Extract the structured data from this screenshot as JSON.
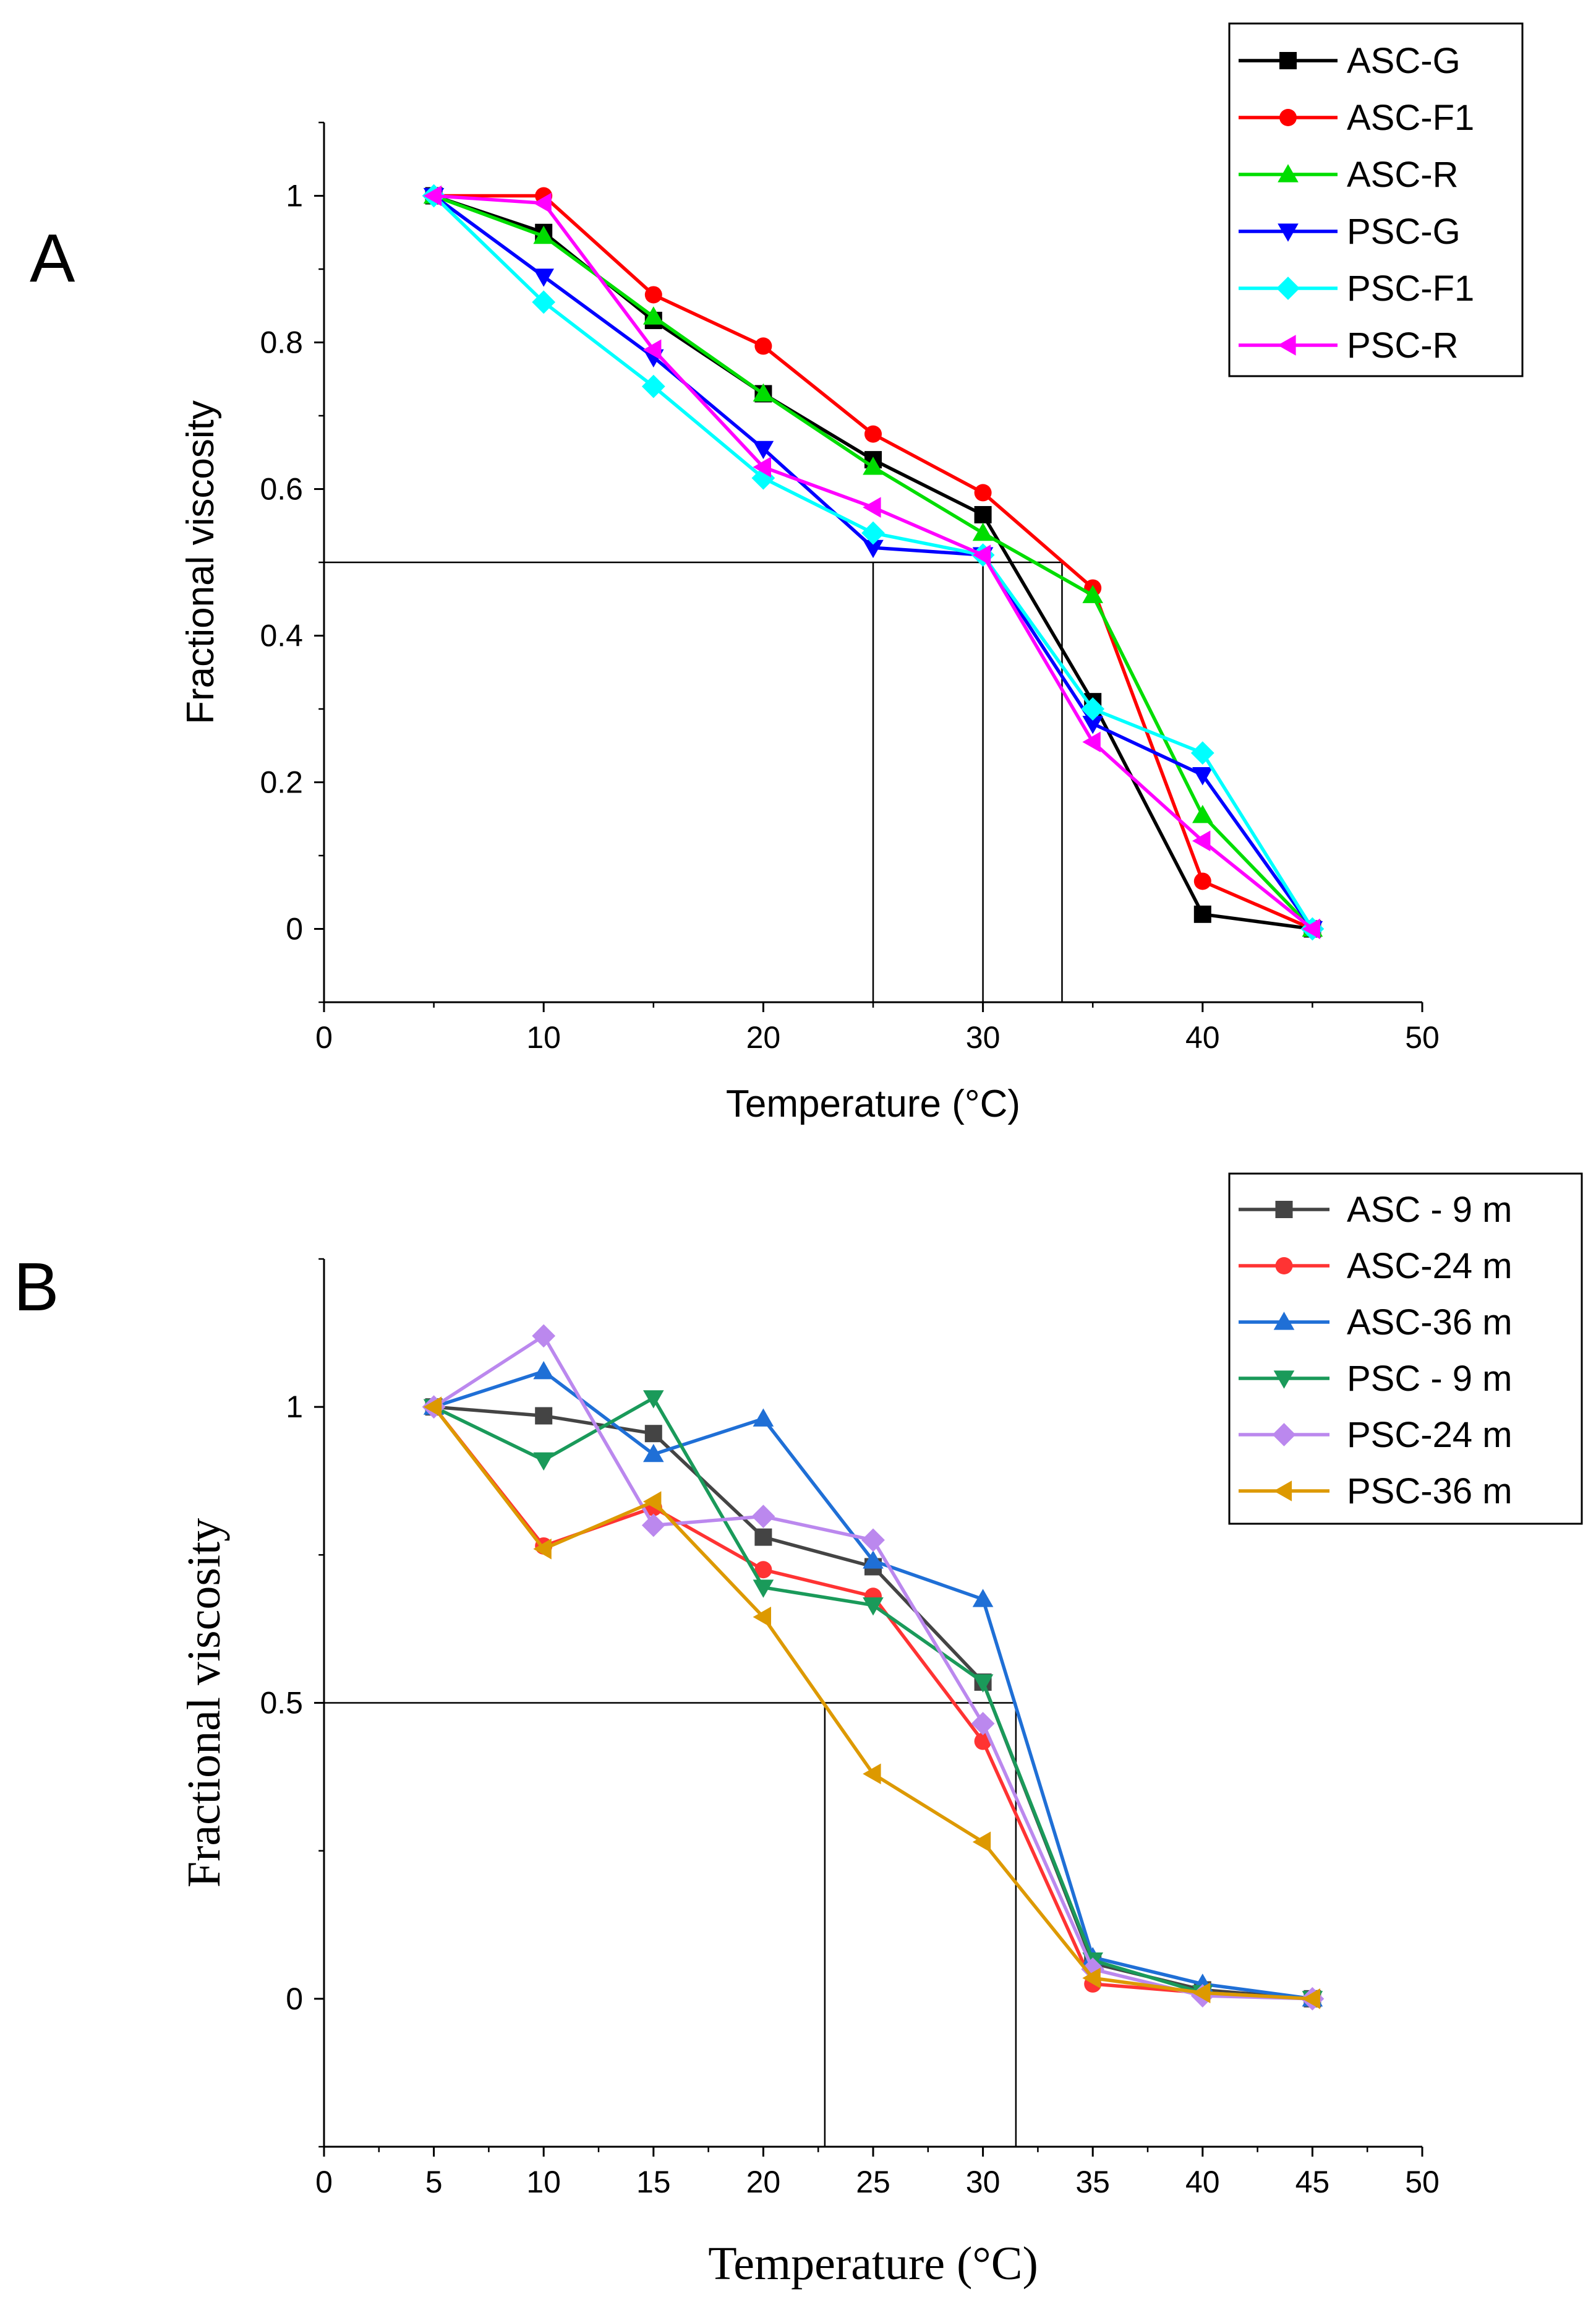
{
  "chart_data": [
    {
      "type": "line",
      "panel_label": "A",
      "xlabel": "Temperature (°C)",
      "ylabel": "Fractional viscosity",
      "xlim": [
        0,
        50
      ],
      "ylim": [
        -0.1,
        1.1
      ],
      "xticks": [
        "0",
        "10",
        "20",
        "30",
        "40",
        "50"
      ],
      "yticks": [
        "0",
        "0.2",
        "0.4",
        "0.6",
        "0.8",
        "1"
      ],
      "legend_position": "top-right",
      "x": [
        5,
        10,
        15,
        20,
        25,
        30,
        35,
        40,
        45
      ],
      "series": [
        {
          "name": "ASC-G",
          "color": "#000000",
          "marker": "square",
          "values": [
            1.0,
            0.95,
            0.83,
            0.73,
            0.64,
            0.565,
            0.31,
            0.02,
            0.0
          ]
        },
        {
          "name": "ASC-F1",
          "color": "#ff0000",
          "marker": "circle",
          "values": [
            1.0,
            1.0,
            0.865,
            0.795,
            0.675,
            0.595,
            0.465,
            0.065,
            0.0
          ]
        },
        {
          "name": "ASC-R",
          "color": "#00dd00",
          "marker": "triangle-up",
          "values": [
            1.0,
            0.945,
            0.835,
            0.73,
            0.63,
            0.54,
            0.455,
            0.155,
            0.0
          ]
        },
        {
          "name": "PSC-G",
          "color": "#0000ff",
          "marker": "triangle-down",
          "values": [
            1.0,
            0.89,
            0.78,
            0.655,
            0.52,
            0.51,
            0.28,
            0.21,
            0.0
          ]
        },
        {
          "name": "PSC-F1",
          "color": "#00ffff",
          "marker": "diamond",
          "values": [
            1.0,
            0.855,
            0.74,
            0.615,
            0.54,
            0.51,
            0.3,
            0.24,
            0.0
          ]
        },
        {
          "name": "PSC-R",
          "color": "#ff00ff",
          "marker": "triangle-left",
          "values": [
            1.0,
            0.99,
            0.79,
            0.63,
            0.575,
            0.51,
            0.255,
            0.12,
            0.0
          ]
        }
      ],
      "reference_lines": {
        "y": 0.5,
        "x_drops": [
          25,
          30,
          33.6
        ]
      }
    },
    {
      "type": "line",
      "panel_label": "B",
      "xlabel": "Temperature (°C)",
      "ylabel": "Fractional viscosity",
      "xlim": [
        0,
        50
      ],
      "ylim": [
        -0.25,
        1.25
      ],
      "xticks": [
        "0",
        "5",
        "10",
        "15",
        "20",
        "25",
        "30",
        "35",
        "40",
        "45",
        "50"
      ],
      "yticks": [
        "0",
        "0.5",
        "1"
      ],
      "legend_position": "top-right",
      "x": [
        5,
        10,
        15,
        20,
        25,
        30,
        35,
        40,
        45
      ],
      "series": [
        {
          "name": "ASC - 9 m",
          "color": "#444444",
          "marker": "square",
          "values": [
            1.0,
            0.985,
            0.955,
            0.78,
            0.73,
            0.535,
            0.06,
            0.015,
            0.0
          ]
        },
        {
          "name": "ASC-24 m",
          "color": "#ff3333",
          "marker": "circle",
          "values": [
            1.0,
            0.765,
            0.83,
            0.725,
            0.68,
            0.435,
            0.025,
            0.01,
            0.0
          ]
        },
        {
          "name": "ASC-36 m",
          "color": "#1f6fd6",
          "marker": "triangle-up",
          "values": [
            1.0,
            1.06,
            0.92,
            0.98,
            0.74,
            0.675,
            0.07,
            0.025,
            0.0
          ]
        },
        {
          "name": "PSC - 9 m",
          "color": "#1a9a5a",
          "marker": "triangle-down",
          "values": [
            1.0,
            0.91,
            1.015,
            0.695,
            0.665,
            0.535,
            0.065,
            0.01,
            0.0
          ]
        },
        {
          "name": "PSC-24 m",
          "color": "#bb88ee",
          "marker": "diamond",
          "values": [
            1.0,
            1.12,
            0.8,
            0.815,
            0.775,
            0.465,
            0.05,
            0.005,
            0.0
          ]
        },
        {
          "name": "PSC-36 m",
          "color": "#dd9900",
          "marker": "triangle-left",
          "values": [
            1.0,
            0.76,
            0.84,
            0.645,
            0.38,
            0.265,
            0.035,
            0.01,
            0.0
          ]
        }
      ],
      "reference_lines": {
        "y": 0.5,
        "x_drops": [
          22.8,
          31.5
        ]
      }
    }
  ]
}
